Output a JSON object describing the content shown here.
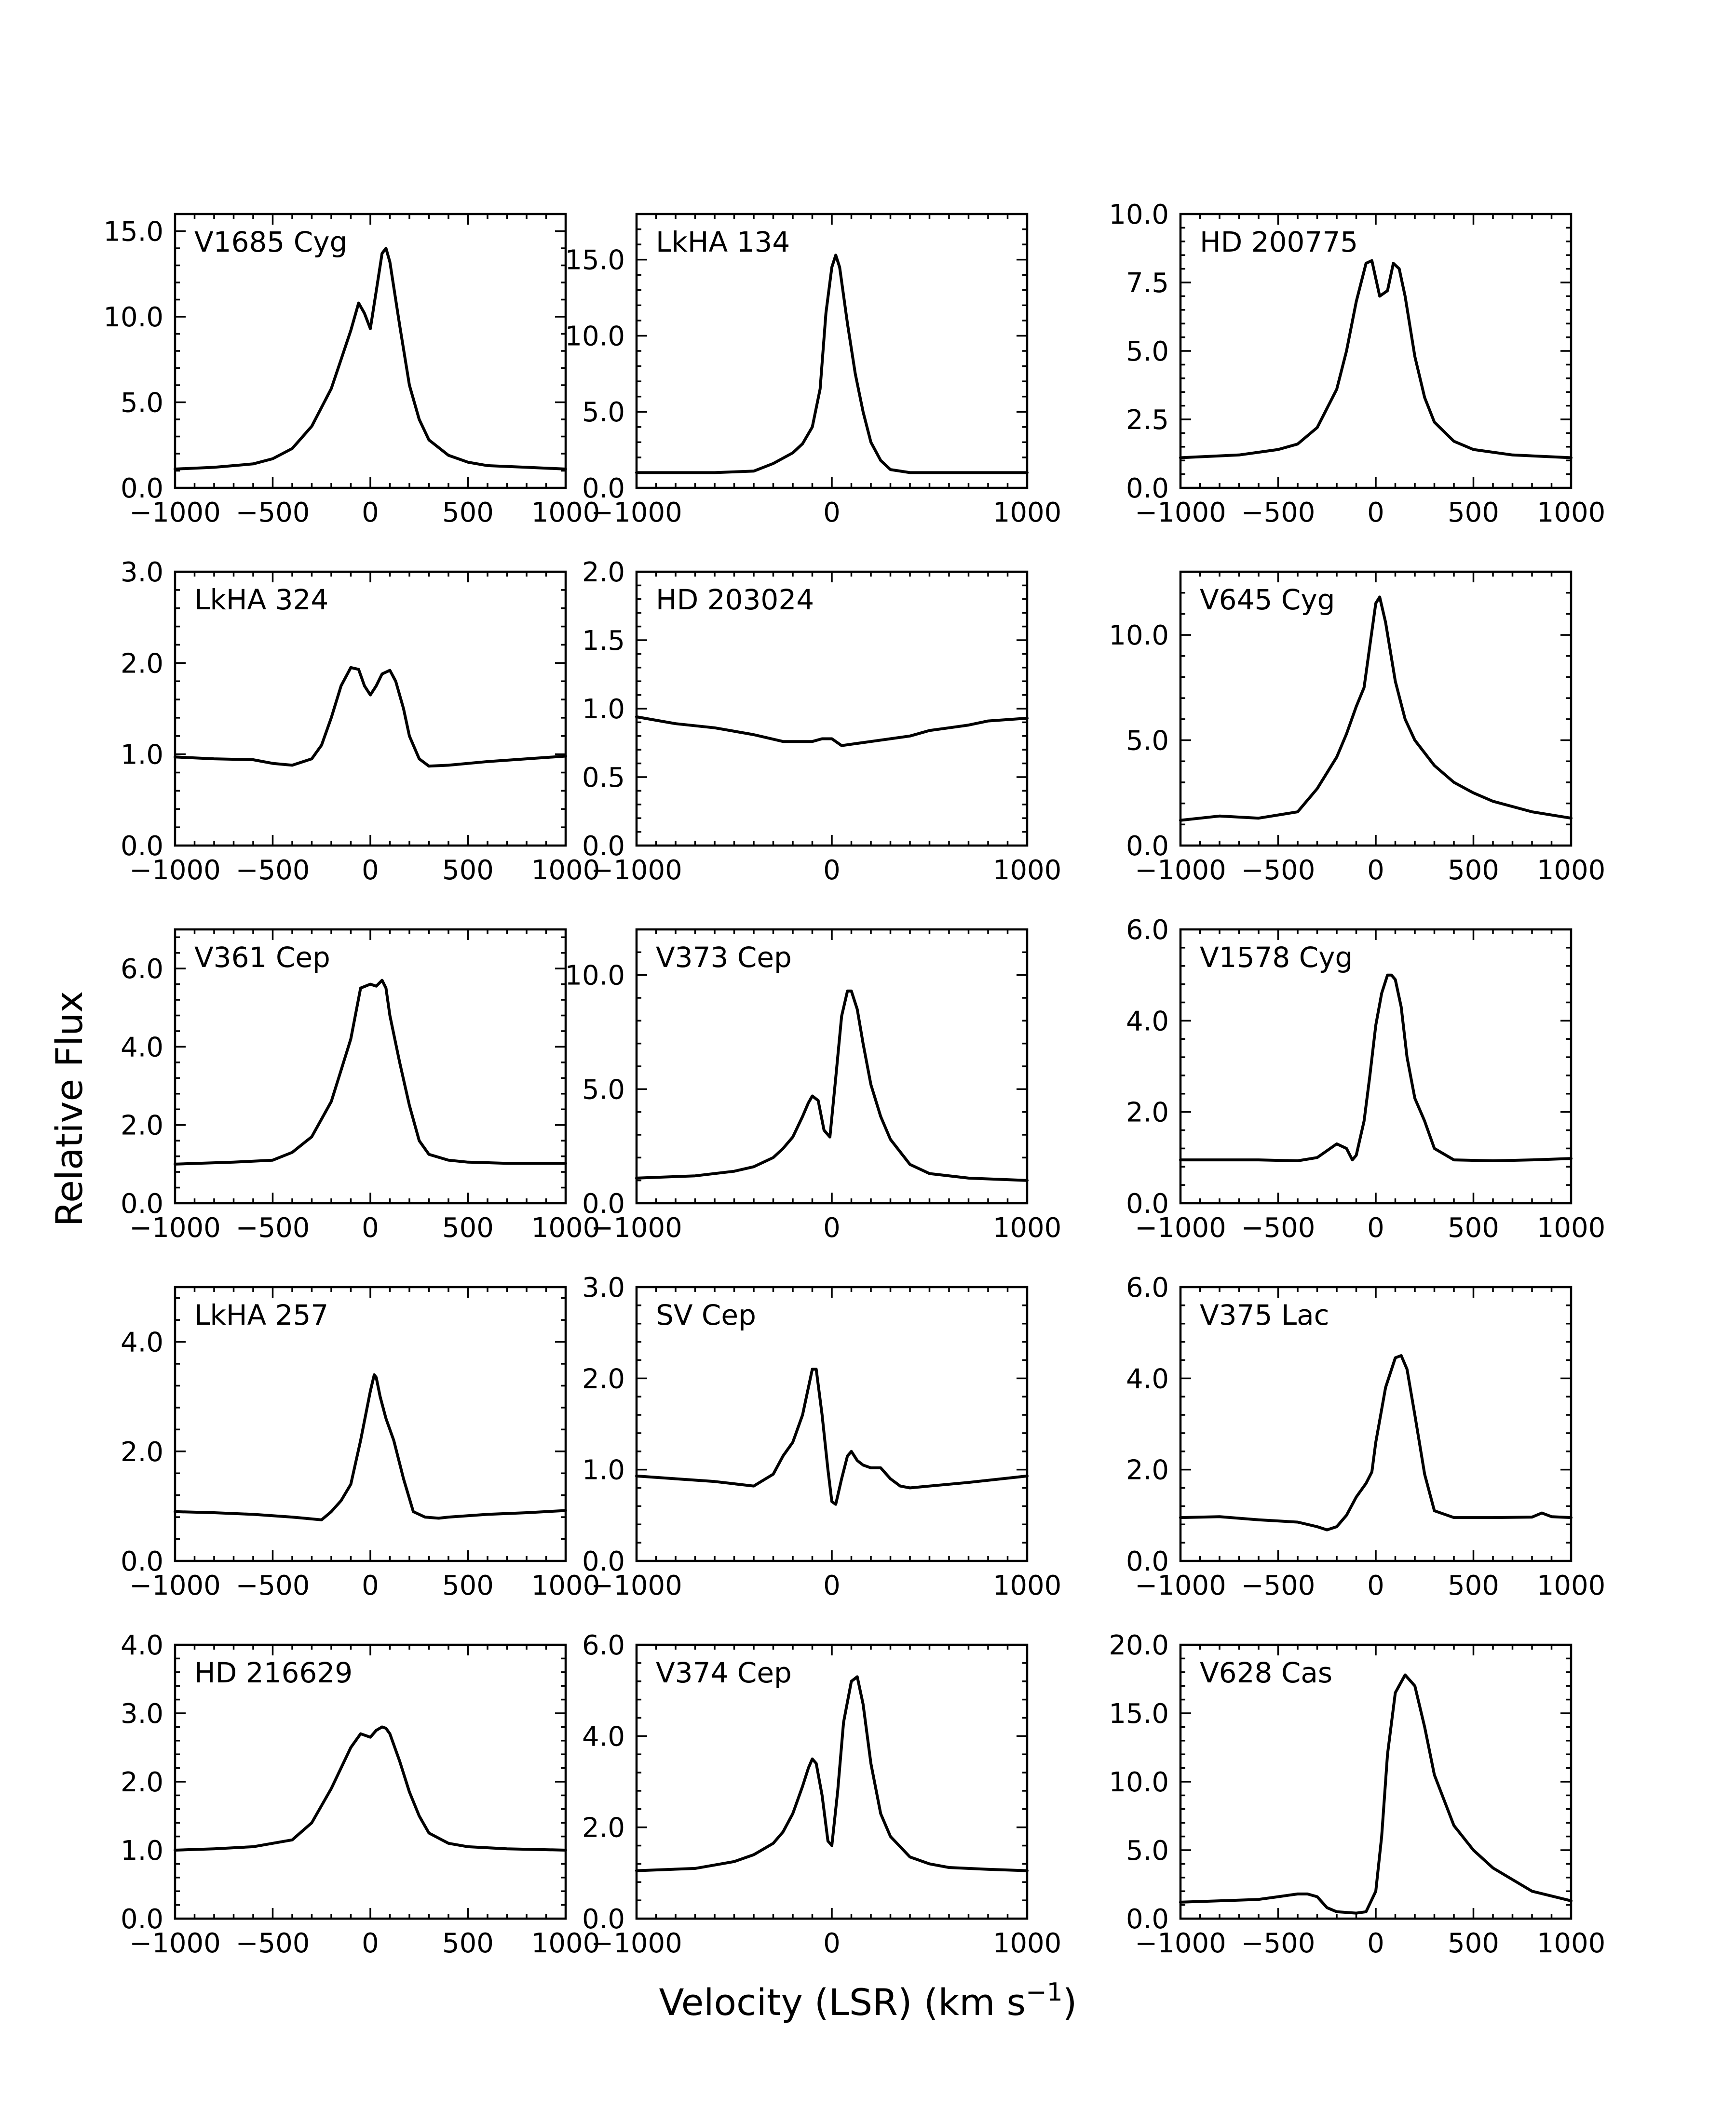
{
  "figure": {
    "xlabel": "Velocity (LSR) (km s",
    "xlabel_exp": "−1",
    "xlabel_close": ")",
    "ylabel": "Relative Flux"
  },
  "chart_data": [
    {
      "type": "line",
      "title": "V1685 Cyg",
      "xlim": [
        -1000,
        1000
      ],
      "ylim": [
        0,
        16
      ],
      "xticks": [
        -1000,
        -500,
        0,
        500,
        1000
      ],
      "xtick_labels": [
        "−1000",
        "−500",
        "0",
        "500",
        "1000"
      ],
      "yticks": [
        0,
        5,
        10,
        15
      ],
      "ytick_labels": [
        "0.0",
        "5.0",
        "10.0",
        "15.0"
      ],
      "yminor": 1,
      "x": [
        -1000,
        -800,
        -600,
        -500,
        -400,
        -300,
        -200,
        -150,
        -100,
        -60,
        -30,
        0,
        30,
        60,
        80,
        100,
        150,
        200,
        250,
        300,
        400,
        500,
        600,
        800,
        1000
      ],
      "y": [
        1.1,
        1.2,
        1.4,
        1.7,
        2.3,
        3.6,
        5.8,
        7.5,
        9.2,
        10.8,
        10.2,
        9.3,
        11.5,
        13.7,
        14.0,
        13.2,
        9.5,
        6.0,
        4.0,
        2.8,
        1.9,
        1.5,
        1.3,
        1.2,
        1.1
      ]
    },
    {
      "type": "line",
      "title": "LkHA 134",
      "xlim": [
        -1000,
        1000
      ],
      "ylim": [
        0,
        18
      ],
      "xticks": [
        -1000,
        0,
        1000
      ],
      "xtick_labels": [
        "−1000",
        "0",
        "1000"
      ],
      "yticks": [
        0,
        5,
        10,
        15
      ],
      "ytick_labels": [
        "0.0",
        "5.0",
        "10.0",
        "15.0"
      ],
      "yminor": 1,
      "x": [
        -1000,
        -600,
        -400,
        -300,
        -200,
        -150,
        -100,
        -60,
        -30,
        0,
        20,
        40,
        80,
        120,
        160,
        200,
        250,
        300,
        400,
        600,
        1000
      ],
      "y": [
        1.0,
        1.0,
        1.1,
        1.6,
        2.3,
        2.9,
        4.0,
        6.5,
        11.5,
        14.5,
        15.3,
        14.5,
        10.8,
        7.5,
        5.0,
        3.0,
        1.8,
        1.2,
        1.0,
        1.0,
        1.0
      ]
    },
    {
      "type": "line",
      "title": "HD 200775",
      "xlim": [
        -1000,
        1000
      ],
      "ylim": [
        0,
        10
      ],
      "xticks": [
        -1000,
        -500,
        0,
        500,
        1000
      ],
      "xtick_labels": [
        "−1000",
        "−500",
        "0",
        "500",
        "1000"
      ],
      "yticks": [
        0,
        2.5,
        5,
        7.5,
        10
      ],
      "ytick_labels": [
        "0.0",
        "2.5",
        "5.0",
        "7.5",
        "10.0"
      ],
      "yminor": 0.5,
      "x": [
        -1000,
        -700,
        -500,
        -400,
        -300,
        -200,
        -150,
        -100,
        -50,
        -20,
        20,
        60,
        90,
        120,
        150,
        200,
        250,
        300,
        400,
        500,
        700,
        1000
      ],
      "y": [
        1.1,
        1.2,
        1.4,
        1.6,
        2.2,
        3.6,
        5.0,
        6.8,
        8.2,
        8.3,
        7.0,
        7.2,
        8.2,
        8.0,
        7.0,
        4.8,
        3.3,
        2.4,
        1.7,
        1.4,
        1.2,
        1.1
      ]
    },
    {
      "type": "line",
      "title": "LkHA 324",
      "xlim": [
        -1000,
        1000
      ],
      "ylim": [
        0,
        3
      ],
      "xticks": [
        -1000,
        -500,
        0,
        500,
        1000
      ],
      "xtick_labels": [
        "−1000",
        "−500",
        "0",
        "500",
        "1000"
      ],
      "yticks": [
        0,
        1,
        2,
        3
      ],
      "ytick_labels": [
        "0.0",
        "1.0",
        "2.0",
        "3.0"
      ],
      "yminor": 0.2,
      "x": [
        -1000,
        -800,
        -600,
        -500,
        -400,
        -300,
        -250,
        -200,
        -150,
        -100,
        -60,
        -30,
        0,
        30,
        60,
        100,
        130,
        170,
        200,
        250,
        300,
        400,
        600,
        800,
        1000
      ],
      "y": [
        0.97,
        0.95,
        0.94,
        0.9,
        0.88,
        0.95,
        1.1,
        1.4,
        1.75,
        1.95,
        1.93,
        1.75,
        1.65,
        1.75,
        1.88,
        1.92,
        1.8,
        1.5,
        1.2,
        0.95,
        0.87,
        0.88,
        0.92,
        0.95,
        0.98
      ]
    },
    {
      "type": "line",
      "title": "HD 203024",
      "xlim": [
        -1000,
        1000
      ],
      "ylim": [
        0,
        2
      ],
      "xticks": [
        -1000,
        0,
        1000
      ],
      "xtick_labels": [
        "−1000",
        "0",
        "1000"
      ],
      "yticks": [
        0,
        0.5,
        1,
        1.5,
        2
      ],
      "ytick_labels": [
        "0.0",
        "0.5",
        "1.0",
        "1.5",
        "2.0"
      ],
      "yminor": 0.1,
      "x": [
        -1000,
        -800,
        -600,
        -400,
        -250,
        -100,
        -50,
        0,
        50,
        100,
        150,
        200,
        300,
        400,
        500,
        600,
        700,
        800,
        900,
        1000
      ],
      "y": [
        0.94,
        0.89,
        0.86,
        0.81,
        0.76,
        0.76,
        0.78,
        0.78,
        0.73,
        0.74,
        0.75,
        0.76,
        0.78,
        0.8,
        0.84,
        0.86,
        0.88,
        0.91,
        0.92,
        0.93
      ]
    },
    {
      "type": "line",
      "title": "V645 Cyg",
      "xlim": [
        -1000,
        1000
      ],
      "ylim": [
        0,
        13
      ],
      "xticks": [
        -1000,
        -500,
        0,
        500,
        1000
      ],
      "xtick_labels": [
        "−1000",
        "−500",
        "0",
        "500",
        "1000"
      ],
      "yticks": [
        0,
        5,
        10
      ],
      "ytick_labels": [
        "0.0",
        "5.0",
        "10.0"
      ],
      "yminor": 1,
      "x": [
        -1000,
        -800,
        -600,
        -400,
        -300,
        -200,
        -150,
        -100,
        -60,
        -30,
        0,
        20,
        50,
        100,
        150,
        200,
        300,
        400,
        500,
        600,
        800,
        1000
      ],
      "y": [
        1.2,
        1.4,
        1.3,
        1.6,
        2.7,
        4.2,
        5.3,
        6.6,
        7.5,
        9.5,
        11.5,
        11.8,
        10.6,
        7.8,
        6.0,
        5.0,
        3.8,
        3.0,
        2.5,
        2.1,
        1.6,
        1.3
      ]
    },
    {
      "type": "line",
      "title": "V361 Cep",
      "xlim": [
        -1000,
        1000
      ],
      "ylim": [
        0,
        7
      ],
      "xticks": [
        -1000,
        -500,
        0,
        500,
        1000
      ],
      "xtick_labels": [
        "−1000",
        "−500",
        "0",
        "500",
        "1000"
      ],
      "yticks": [
        0,
        2,
        4,
        6
      ],
      "ytick_labels": [
        "0.0",
        "2.0",
        "4.0",
        "6.0"
      ],
      "yminor": 0.4,
      "x": [
        -1000,
        -700,
        -500,
        -400,
        -300,
        -200,
        -150,
        -100,
        -50,
        0,
        30,
        60,
        80,
        100,
        150,
        200,
        250,
        300,
        400,
        500,
        700,
        1000
      ],
      "y": [
        1.0,
        1.05,
        1.1,
        1.3,
        1.7,
        2.6,
        3.4,
        4.2,
        5.5,
        5.6,
        5.55,
        5.7,
        5.5,
        4.8,
        3.6,
        2.5,
        1.6,
        1.25,
        1.1,
        1.05,
        1.02,
        1.02
      ]
    },
    {
      "type": "line",
      "title": "V373 Cep",
      "xlim": [
        -1000,
        1000
      ],
      "ylim": [
        0,
        12
      ],
      "xticks": [
        -1000,
        0,
        1000
      ],
      "xtick_labels": [
        "−1000",
        "0",
        "1000"
      ],
      "yticks": [
        0,
        5,
        10
      ],
      "ytick_labels": [
        "0.0",
        "5.0",
        "10.0"
      ],
      "yminor": 1,
      "x": [
        -1000,
        -700,
        -500,
        -400,
        -300,
        -250,
        -200,
        -150,
        -120,
        -100,
        -70,
        -40,
        -10,
        20,
        50,
        80,
        100,
        130,
        160,
        200,
        250,
        300,
        400,
        500,
        700,
        1000
      ],
      "y": [
        1.1,
        1.2,
        1.4,
        1.6,
        2.0,
        2.4,
        2.9,
        3.8,
        4.4,
        4.7,
        4.5,
        3.2,
        2.9,
        5.5,
        8.2,
        9.3,
        9.3,
        8.5,
        7.0,
        5.2,
        3.8,
        2.8,
        1.7,
        1.3,
        1.1,
        1.0
      ]
    },
    {
      "type": "line",
      "title": "V1578 Cyg",
      "xlim": [
        -1000,
        1000
      ],
      "ylim": [
        0,
        6
      ],
      "xticks": [
        -1000,
        -500,
        0,
        500,
        1000
      ],
      "xtick_labels": [
        "−1000",
        "−500",
        "0",
        "500",
        "1000"
      ],
      "yticks": [
        0,
        2,
        4,
        6
      ],
      "ytick_labels": [
        "0.0",
        "2.0",
        "4.0",
        "6.0"
      ],
      "yminor": 0.4,
      "x": [
        -1000,
        -800,
        -600,
        -400,
        -300,
        -250,
        -200,
        -150,
        -120,
        -100,
        -60,
        -30,
        0,
        30,
        60,
        80,
        100,
        130,
        160,
        200,
        250,
        300,
        400,
        600,
        800,
        1000
      ],
      "y": [
        0.95,
        0.95,
        0.95,
        0.93,
        1.0,
        1.15,
        1.3,
        1.2,
        0.95,
        1.05,
        1.8,
        2.8,
        3.9,
        4.6,
        5.0,
        5.0,
        4.9,
        4.3,
        3.2,
        2.3,
        1.8,
        1.2,
        0.95,
        0.93,
        0.95,
        0.98
      ]
    },
    {
      "type": "line",
      "title": "LkHA 257",
      "xlim": [
        -1000,
        1000
      ],
      "ylim": [
        0,
        5
      ],
      "xticks": [
        -1000,
        -500,
        0,
        500,
        1000
      ],
      "xtick_labels": [
        "−1000",
        "−500",
        "0",
        "500",
        "1000"
      ],
      "yticks": [
        0,
        2,
        4
      ],
      "ytick_labels": [
        "0.0",
        "2.0",
        "4.0"
      ],
      "yminor": 0.4,
      "x": [
        -1000,
        -800,
        -600,
        -400,
        -250,
        -200,
        -150,
        -100,
        -50,
        0,
        20,
        30,
        50,
        80,
        120,
        170,
        220,
        280,
        350,
        400,
        600,
        800,
        1000
      ],
      "y": [
        0.9,
        0.88,
        0.85,
        0.8,
        0.75,
        0.9,
        1.1,
        1.4,
        2.2,
        3.1,
        3.4,
        3.35,
        3.0,
        2.6,
        2.2,
        1.5,
        0.9,
        0.8,
        0.78,
        0.8,
        0.85,
        0.88,
        0.92
      ]
    },
    {
      "type": "line",
      "title": "SV Cep",
      "xlim": [
        -1000,
        1000
      ],
      "ylim": [
        0,
        3
      ],
      "xticks": [
        -1000,
        0,
        1000
      ],
      "xtick_labels": [
        "−1000",
        "0",
        "1000"
      ],
      "yticks": [
        0,
        1,
        2,
        3
      ],
      "ytick_labels": [
        "0.0",
        "1.0",
        "2.0",
        "3.0"
      ],
      "yminor": 0.2,
      "x": [
        -1000,
        -800,
        -600,
        -400,
        -300,
        -250,
        -200,
        -150,
        -120,
        -100,
        -80,
        -50,
        -20,
        0,
        20,
        50,
        80,
        100,
        130,
        160,
        200,
        250,
        300,
        350,
        400,
        500,
        700,
        1000
      ],
      "y": [
        0.93,
        0.9,
        0.87,
        0.82,
        0.95,
        1.15,
        1.3,
        1.6,
        1.9,
        2.1,
        2.1,
        1.6,
        1.0,
        0.65,
        0.62,
        0.9,
        1.15,
        1.2,
        1.1,
        1.05,
        1.02,
        1.02,
        0.9,
        0.82,
        0.8,
        0.82,
        0.86,
        0.93
      ]
    },
    {
      "type": "line",
      "title": "V375 Lac",
      "xlim": [
        -1000,
        1000
      ],
      "ylim": [
        0,
        6
      ],
      "xticks": [
        -1000,
        -500,
        0,
        500,
        1000
      ],
      "xtick_labels": [
        "−1000",
        "−500",
        "0",
        "500",
        "1000"
      ],
      "yticks": [
        0,
        2,
        4,
        6
      ],
      "ytick_labels": [
        "0.0",
        "2.0",
        "4.0",
        "6.0"
      ],
      "yminor": 0.4,
      "x": [
        -1000,
        -800,
        -600,
        -400,
        -300,
        -250,
        -200,
        -150,
        -100,
        -50,
        -20,
        0,
        50,
        100,
        130,
        160,
        200,
        250,
        300,
        400,
        600,
        800,
        850,
        900,
        1000
      ],
      "y": [
        0.95,
        0.97,
        0.9,
        0.85,
        0.75,
        0.68,
        0.75,
        1.0,
        1.4,
        1.7,
        1.95,
        2.6,
        3.8,
        4.45,
        4.5,
        4.2,
        3.2,
        1.9,
        1.1,
        0.95,
        0.95,
        0.96,
        1.05,
        0.97,
        0.95
      ]
    },
    {
      "type": "line",
      "title": "HD 216629",
      "xlim": [
        -1000,
        1000
      ],
      "ylim": [
        0,
        4
      ],
      "xticks": [
        -1000,
        -500,
        0,
        500,
        1000
      ],
      "xtick_labels": [
        "−1000",
        "−500",
        "0",
        "500",
        "1000"
      ],
      "yticks": [
        0,
        1,
        2,
        3,
        4
      ],
      "ytick_labels": [
        "0.0",
        "1.0",
        "2.0",
        "3.0",
        "4.0"
      ],
      "yminor": 0.2,
      "x": [
        -1000,
        -800,
        -600,
        -400,
        -300,
        -200,
        -100,
        -50,
        0,
        30,
        60,
        80,
        100,
        150,
        200,
        250,
        300,
        400,
        500,
        700,
        1000
      ],
      "y": [
        1.0,
        1.02,
        1.05,
        1.15,
        1.4,
        1.9,
        2.5,
        2.7,
        2.65,
        2.75,
        2.8,
        2.78,
        2.7,
        2.3,
        1.85,
        1.5,
        1.25,
        1.1,
        1.05,
        1.02,
        1.0
      ]
    },
    {
      "type": "line",
      "title": "V374 Cep",
      "xlim": [
        -1000,
        1000
      ],
      "ylim": [
        0,
        6
      ],
      "xticks": [
        -1000,
        0,
        1000
      ],
      "xtick_labels": [
        "−1000",
        "0",
        "1000"
      ],
      "yticks": [
        0,
        2,
        4,
        6
      ],
      "ytick_labels": [
        "0.0",
        "2.0",
        "4.0",
        "6.0"
      ],
      "yminor": 0.4,
      "x": [
        -1000,
        -700,
        -500,
        -400,
        -300,
        -250,
        -200,
        -150,
        -120,
        -100,
        -80,
        -50,
        -20,
        0,
        30,
        60,
        100,
        130,
        160,
        200,
        250,
        300,
        400,
        500,
        600,
        700,
        800,
        1000
      ],
      "y": [
        1.05,
        1.1,
        1.25,
        1.4,
        1.65,
        1.9,
        2.3,
        2.9,
        3.3,
        3.5,
        3.4,
        2.7,
        1.7,
        1.6,
        2.8,
        4.3,
        5.2,
        5.3,
        4.7,
        3.4,
        2.3,
        1.8,
        1.35,
        1.2,
        1.12,
        1.1,
        1.08,
        1.05
      ]
    },
    {
      "type": "line",
      "title": "V628 Cas",
      "xlim": [
        -1000,
        1000
      ],
      "ylim": [
        0,
        20
      ],
      "xticks": [
        -1000,
        -500,
        0,
        500,
        1000
      ],
      "xtick_labels": [
        "−1000",
        "−500",
        "0",
        "500",
        "1000"
      ],
      "yticks": [
        0,
        5,
        10,
        15,
        20
      ],
      "ytick_labels": [
        "0.0",
        "5.0",
        "10.0",
        "15.0",
        "20.0"
      ],
      "yminor": 1,
      "x": [
        -1000,
        -800,
        -600,
        -500,
        -400,
        -350,
        -300,
        -250,
        -200,
        -100,
        -50,
        0,
        30,
        60,
        100,
        150,
        200,
        250,
        300,
        400,
        500,
        600,
        800,
        1000
      ],
      "y": [
        1.2,
        1.3,
        1.4,
        1.6,
        1.8,
        1.8,
        1.6,
        0.8,
        0.5,
        0.4,
        0.5,
        2.0,
        6.0,
        12.0,
        16.5,
        17.8,
        17.0,
        14.0,
        10.5,
        6.8,
        5.0,
        3.7,
        2.0,
        1.3
      ]
    }
  ]
}
